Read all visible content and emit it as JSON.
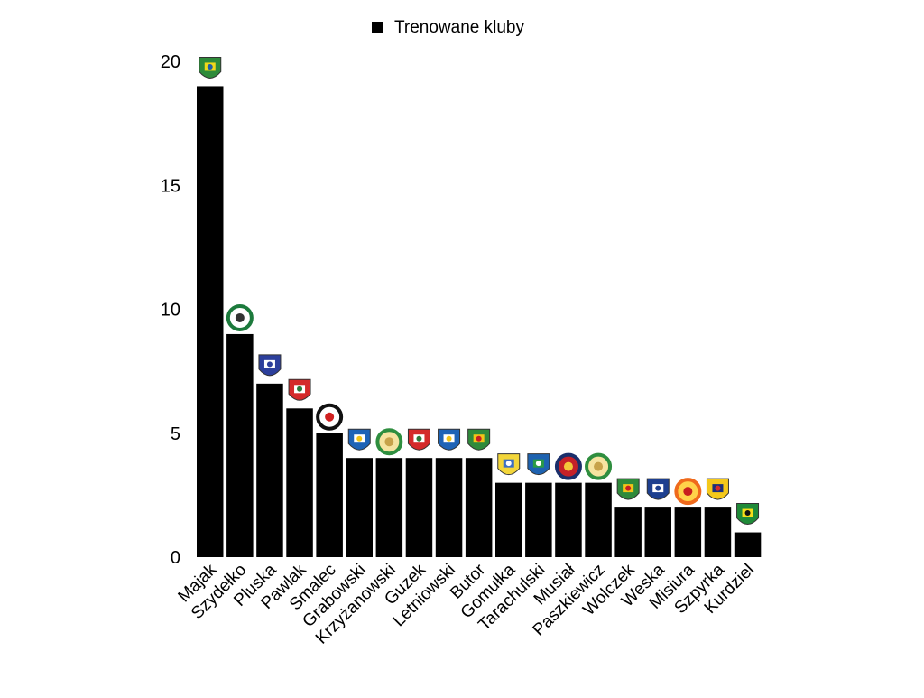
{
  "chart_data": {
    "type": "bar",
    "legend": {
      "label": "Trenowane kluby",
      "placement": "top-center",
      "color": "#000000"
    },
    "categories": [
      "Majak",
      "Szydełko",
      "Pluska",
      "Pawlak",
      "Smalec",
      "Grabowski",
      "Krzyżanowski",
      "Guzek",
      "Letniowski",
      "Butor",
      "Gomułka",
      "Tarachulski",
      "Musiał",
      "Paszkiewicz",
      "Wolczek",
      "Weska",
      "Misiura",
      "Szpyrka",
      "Kurdziel"
    ],
    "series": [
      {
        "name": "Trenowane kluby",
        "color": "#000000",
        "values": [
          19,
          9,
          7,
          6,
          5,
          4,
          4,
          4,
          4,
          4,
          3,
          3,
          3,
          3,
          2,
          2,
          2,
          2,
          1
        ]
      }
    ],
    "yticks": [
      0,
      5,
      10,
      15,
      20
    ],
    "ylim": [
      0,
      20
    ],
    "grid": false,
    "bar_icons": [
      "crest-green-yellow-s",
      "crest-round-green",
      "crest-blue-anchor",
      "crest-red-white-shield",
      "crest-black-white-round",
      "crest-blue-shield",
      "crest-green-round",
      "crest-red-white-shield",
      "crest-blue-shield",
      "crest-green-shield",
      "crest-yellow-blue-pennant",
      "crest-blue-green-shield",
      "crest-navy-round",
      "crest-green-round",
      "crest-green-shield",
      "crest-blue-white-shield",
      "crest-orange-round",
      "crest-yellow-navy-shield",
      "crest-green-yellow-gks"
    ]
  }
}
